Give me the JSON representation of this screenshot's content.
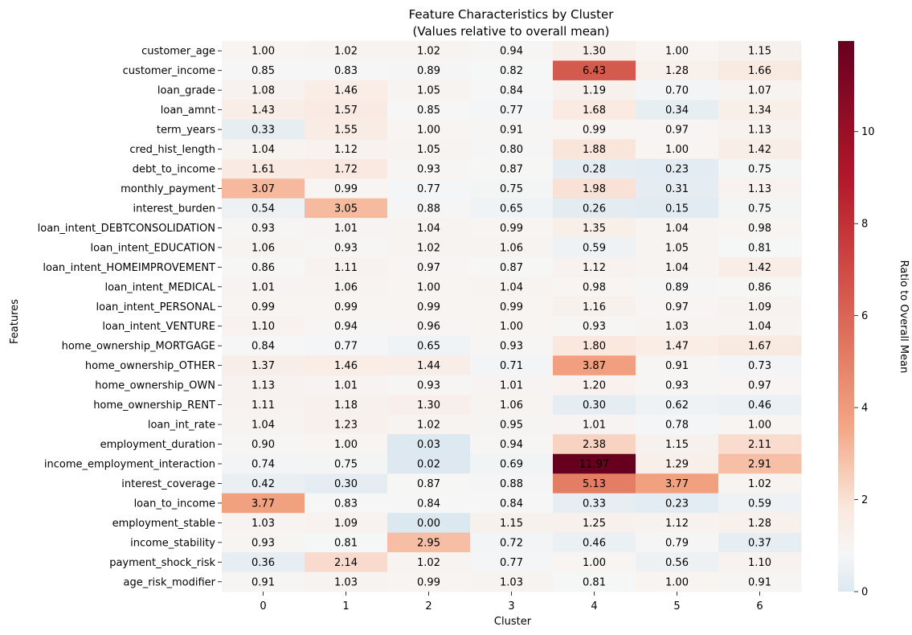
{
  "chart_data": {
    "type": "heatmap",
    "title": "Feature Characteristics by Cluster",
    "subtitle": "(Values relative to overall mean)",
    "xlabel": "Cluster",
    "ylabel": "Features",
    "colorbar_label": "Ratio to Overall Mean",
    "colorbar_ticks": [
      0,
      2,
      4,
      6,
      8,
      10
    ],
    "colorbar_range": [
      0,
      11.97
    ],
    "colormap": "RdBu_r",
    "columns": [
      "0",
      "1",
      "2",
      "3",
      "4",
      "5",
      "6"
    ],
    "rows": [
      "customer_age",
      "customer_income",
      "loan_grade",
      "loan_amnt",
      "term_years",
      "cred_hist_length",
      "debt_to_income",
      "monthly_payment",
      "interest_burden",
      "loan_intent_DEBTCONSOLIDATION",
      "loan_intent_EDUCATION",
      "loan_intent_HOMEIMPROVEMENT",
      "loan_intent_MEDICAL",
      "loan_intent_PERSONAL",
      "loan_intent_VENTURE",
      "home_ownership_MORTGAGE",
      "home_ownership_OTHER",
      "home_ownership_OWN",
      "home_ownership_RENT",
      "loan_int_rate",
      "employment_duration",
      "income_employment_interaction",
      "interest_coverage",
      "loan_to_income",
      "employment_stable",
      "income_stability",
      "payment_shock_risk",
      "age_risk_modifier"
    ],
    "values": [
      [
        1.0,
        1.02,
        1.02,
        0.94,
        1.3,
        1.0,
        1.15
      ],
      [
        0.85,
        0.83,
        0.89,
        0.82,
        6.43,
        1.28,
        1.66
      ],
      [
        1.08,
        1.46,
        1.05,
        0.84,
        1.19,
        0.7,
        1.07
      ],
      [
        1.43,
        1.57,
        0.85,
        0.77,
        1.68,
        0.34,
        1.34
      ],
      [
        0.33,
        1.55,
        1.0,
        0.91,
        0.99,
        0.97,
        1.13
      ],
      [
        1.04,
        1.12,
        1.05,
        0.8,
        1.88,
        1.0,
        1.42
      ],
      [
        1.61,
        1.72,
        0.93,
        0.87,
        0.28,
        0.23,
        0.75
      ],
      [
        3.07,
        0.99,
        0.77,
        0.75,
        1.98,
        0.31,
        1.13
      ],
      [
        0.54,
        3.05,
        0.88,
        0.65,
        0.26,
        0.15,
        0.75
      ],
      [
        0.93,
        1.01,
        1.04,
        0.99,
        1.35,
        1.04,
        0.98
      ],
      [
        1.06,
        0.93,
        1.02,
        1.06,
        0.59,
        1.05,
        0.81
      ],
      [
        0.86,
        1.11,
        0.97,
        0.87,
        1.12,
        1.04,
        1.42
      ],
      [
        1.01,
        1.06,
        1.0,
        1.04,
        0.98,
        0.89,
        0.86
      ],
      [
        0.99,
        0.99,
        0.99,
        0.99,
        1.16,
        0.97,
        1.09
      ],
      [
        1.1,
        0.94,
        0.96,
        1.0,
        0.93,
        1.03,
        1.04
      ],
      [
        0.84,
        0.77,
        0.65,
        0.93,
        1.8,
        1.47,
        1.67
      ],
      [
        1.37,
        1.46,
        1.44,
        0.71,
        3.87,
        0.91,
        0.73
      ],
      [
        1.13,
        1.01,
        0.93,
        1.01,
        1.2,
        0.93,
        0.97
      ],
      [
        1.11,
        1.18,
        1.3,
        1.06,
        0.3,
        0.62,
        0.46
      ],
      [
        1.04,
        1.23,
        1.02,
        0.95,
        1.01,
        0.78,
        1.0
      ],
      [
        0.9,
        1.0,
        0.03,
        0.94,
        2.38,
        1.15,
        2.11
      ],
      [
        0.74,
        0.75,
        0.02,
        0.69,
        11.97,
        1.29,
        2.91
      ],
      [
        0.42,
        0.3,
        0.87,
        0.88,
        5.13,
        3.77,
        1.02
      ],
      [
        3.77,
        0.83,
        0.84,
        0.84,
        0.33,
        0.23,
        0.59
      ],
      [
        1.03,
        1.09,
        0.0,
        1.15,
        1.25,
        1.12,
        1.28
      ],
      [
        0.93,
        0.81,
        2.95,
        0.72,
        0.46,
        0.79,
        0.37
      ],
      [
        0.36,
        2.14,
        1.02,
        0.77,
        1.0,
        0.56,
        1.1
      ],
      [
        0.91,
        1.03,
        0.99,
        1.03,
        0.81,
        1.0,
        0.91
      ]
    ]
  }
}
